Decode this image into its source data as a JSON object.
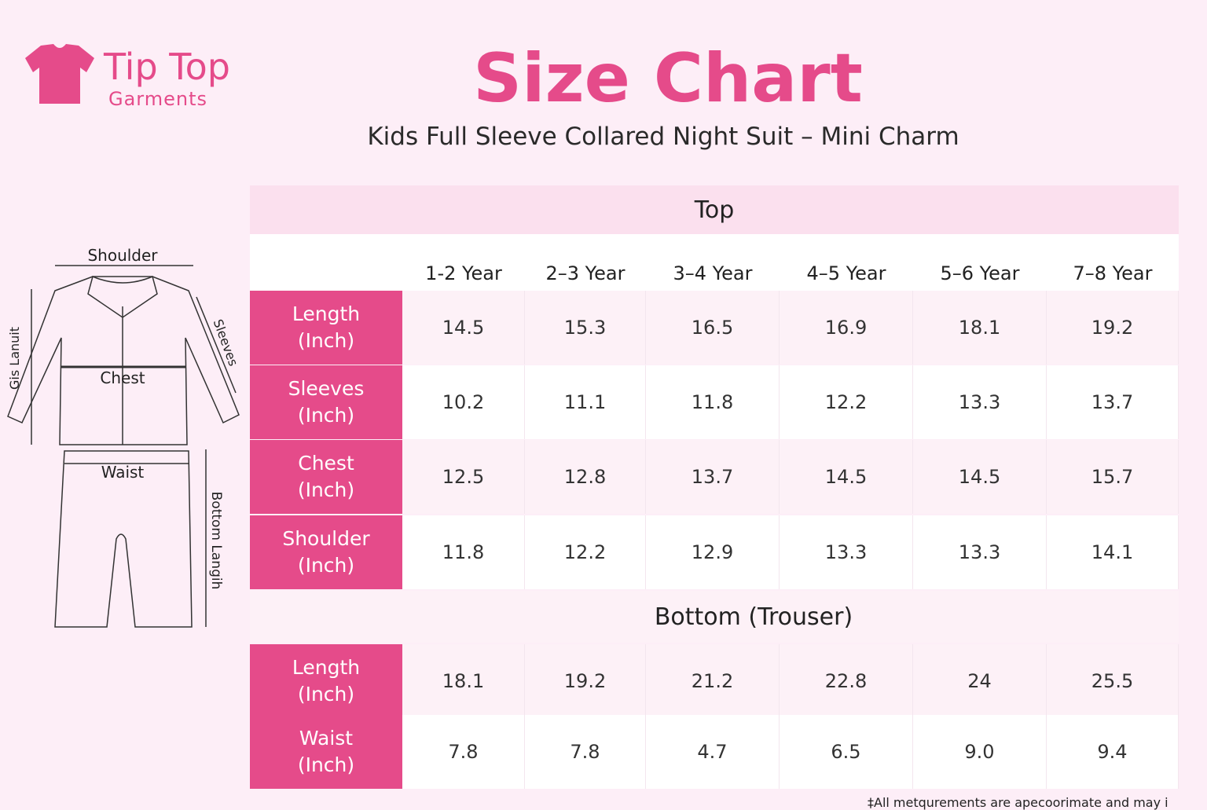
{
  "header": {
    "logo_name": "Tip Top",
    "logo_sub": "Garments",
    "title": "Size Chart",
    "subtitle": "Kids Full Sleeve Collared Night Suit – Mini Charm"
  },
  "diagram": {
    "shoulder": "Shoulder",
    "chest": "Chest",
    "waist": "Waist",
    "top_length": "Gis Lanuit",
    "sleeves": "Sleeves",
    "bottom_length": "Bottom Langih"
  },
  "table": {
    "top_title": "Top",
    "bottom_title": "Bottom (Trouser)",
    "columns": [
      "1-2 Year",
      "2–3 Year",
      "3–4 Year",
      "4–5 Year",
      "5–6 Year",
      "7–8 Year"
    ],
    "top_rows": [
      {
        "name": "Length",
        "unit": "(Inch)",
        "cells": [
          "14.5",
          "15.3",
          "16.5",
          "16.9",
          "18.1",
          "19.2"
        ]
      },
      {
        "name": "Sleeves",
        "unit": "(Inch)",
        "cells": [
          "10.2",
          "11.1",
          "11.8",
          "12.2",
          "13.3",
          "13.7"
        ]
      },
      {
        "name": "Chest",
        "unit": "(Inch)",
        "cells": [
          "12.5",
          "12.8",
          "13.7",
          "14.5",
          "14.5",
          "15.7"
        ]
      },
      {
        "name": "Shoulder",
        "unit": "(Inch)",
        "cells": [
          "11.8",
          "12.2",
          "12.9",
          "13.3",
          "13.3",
          "14.1"
        ]
      }
    ],
    "bottom_rows": [
      {
        "name": "Length",
        "unit": "(Inch)",
        "cells": [
          "18.1",
          "19.2",
          "21.2",
          "22.8",
          "24",
          "25.5"
        ]
      },
      {
        "name": "Waist",
        "unit": "(Inch)",
        "cells": [
          "7.8",
          "7.8",
          "4.7",
          "6.5",
          "9.0",
          "9.4"
        ]
      }
    ]
  },
  "footnote": "‡All metqurements are apecoorimate and may i"
}
